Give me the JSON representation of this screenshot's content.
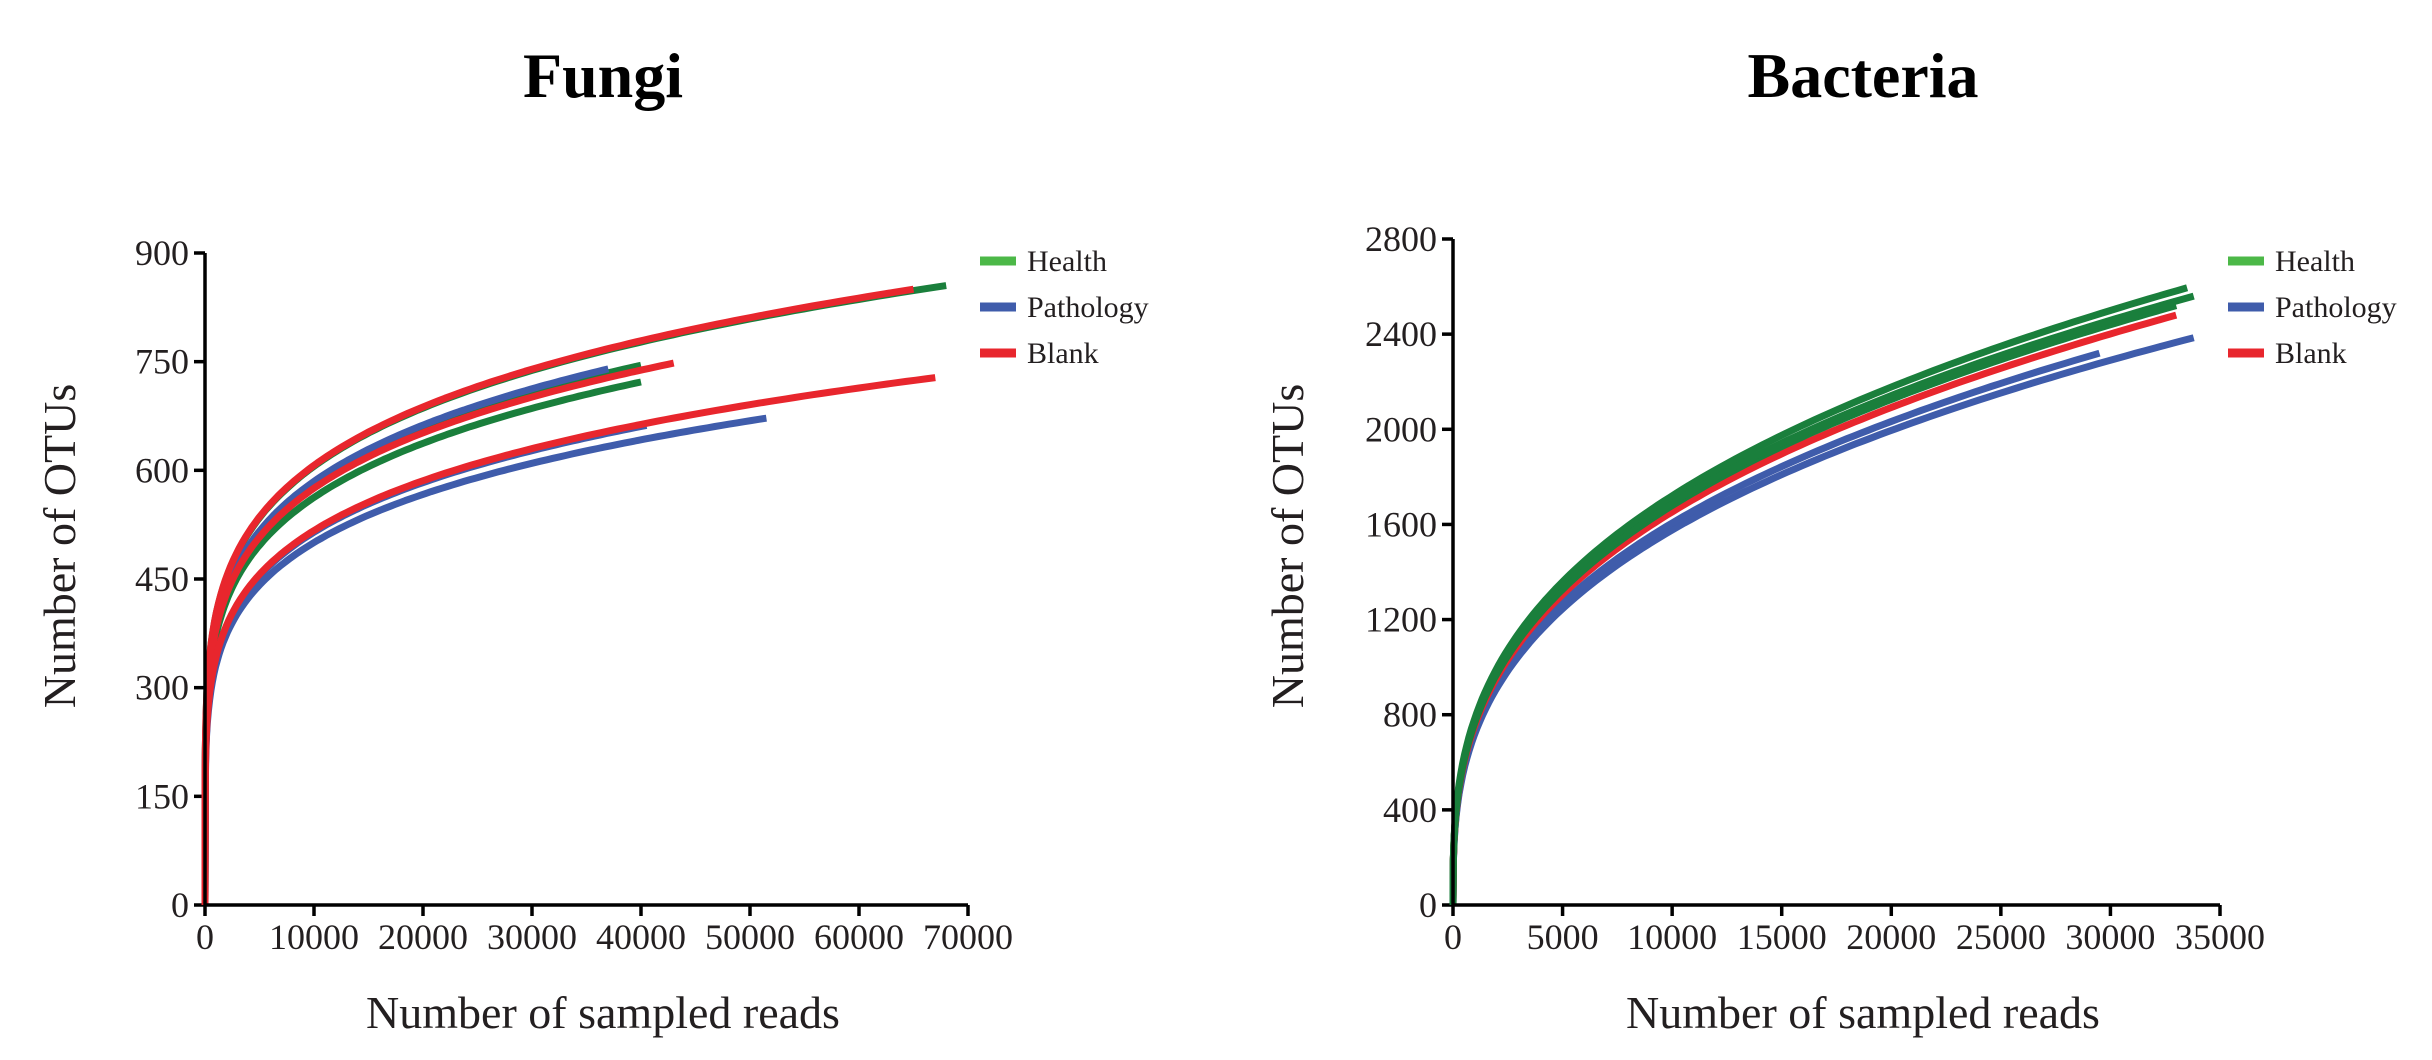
{
  "colors": {
    "health": "#1a7f3c",
    "health_legend": "#4cb848",
    "pathology": "#3f5cab",
    "blank": "#e8262d"
  },
  "chart_data": [
    {
      "type": "line",
      "title": "Fungi",
      "xlabel": "Number of sampled reads",
      "ylabel": "Number of OTUs",
      "xlim": [
        0,
        70000
      ],
      "ylim": [
        0,
        900
      ],
      "xticks": [
        0,
        10000,
        20000,
        30000,
        40000,
        50000,
        60000,
        70000
      ],
      "yticks": [
        0,
        150,
        300,
        450,
        600,
        750,
        900
      ],
      "legend": {
        "placement": "top-right",
        "entries": [
          {
            "name": "Health",
            "color_key": "health_legend"
          },
          {
            "name": "Pathology",
            "color_key": "pathology"
          },
          {
            "name": "Blank",
            "color_key": "blank"
          }
        ]
      },
      "series": [
        {
          "group": "Health",
          "color_key": "health",
          "max_x": 68000,
          "end_y": 855
        },
        {
          "group": "Health",
          "color_key": "health",
          "max_x": 40000,
          "end_y": 745
        },
        {
          "group": "Health",
          "color_key": "health",
          "max_x": 40000,
          "end_y": 722
        },
        {
          "group": "Pathology",
          "color_key": "pathology",
          "max_x": 51500,
          "end_y": 672
        },
        {
          "group": "Pathology",
          "color_key": "pathology",
          "max_x": 40500,
          "end_y": 662
        },
        {
          "group": "Pathology",
          "color_key": "pathology",
          "max_x": 37000,
          "end_y": 740
        },
        {
          "group": "Blank",
          "color_key": "blank",
          "max_x": 65000,
          "end_y": 850
        },
        {
          "group": "Blank",
          "color_key": "blank",
          "max_x": 43000,
          "end_y": 748
        },
        {
          "group": "Blank",
          "color_key": "blank",
          "max_x": 67000,
          "end_y": 728
        }
      ]
    },
    {
      "type": "line",
      "title": "Bacteria",
      "xlabel": "Number of sampled reads",
      "ylabel": "Number of OTUs",
      "xlim": [
        0,
        35000
      ],
      "ylim": [
        0,
        2800
      ],
      "xticks": [
        0,
        5000,
        10000,
        15000,
        20000,
        25000,
        30000,
        35000
      ],
      "yticks": [
        0,
        400,
        800,
        1200,
        1600,
        2000,
        2400,
        2800
      ],
      "legend": {
        "placement": "top-right",
        "entries": [
          {
            "name": "Health",
            "color_key": "health_legend"
          },
          {
            "name": "Pathology",
            "color_key": "pathology"
          },
          {
            "name": "Blank",
            "color_key": "blank"
          }
        ]
      },
      "series": [
        {
          "group": "Pathology",
          "color_key": "pathology",
          "max_x": 33800,
          "end_y": 2385
        },
        {
          "group": "Pathology",
          "color_key": "pathology",
          "max_x": 29500,
          "end_y": 2320
        },
        {
          "group": "Blank",
          "color_key": "blank",
          "max_x": 33000,
          "end_y": 2480
        },
        {
          "group": "Blank",
          "color_key": "blank",
          "max_x": 31000,
          "end_y": 2470
        },
        {
          "group": "Blank",
          "color_key": "blank",
          "max_x": 32000,
          "end_y": 2500
        },
        {
          "group": "Health",
          "color_key": "health",
          "max_x": 33000,
          "end_y": 2520
        },
        {
          "group": "Health",
          "color_key": "health",
          "max_x": 33800,
          "end_y": 2560
        },
        {
          "group": "Health",
          "color_key": "health",
          "max_x": 33500,
          "end_y": 2595
        }
      ]
    }
  ]
}
